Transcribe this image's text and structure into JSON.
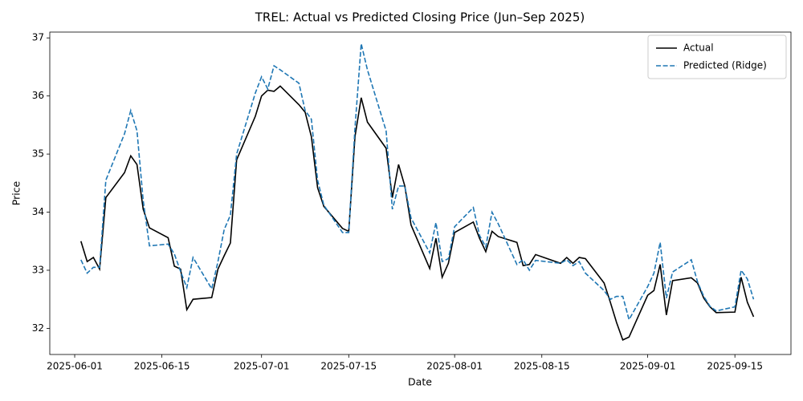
{
  "chart_data": {
    "type": "line",
    "title": "TREL: Actual vs Predicted Closing Price (Jun–Sep 2025)",
    "x_label": "Date",
    "y_label": "Price",
    "x": [
      "2025-06-02",
      "2025-06-03",
      "2025-06-04",
      "2025-06-05",
      "2025-06-06",
      "2025-06-09",
      "2025-06-10",
      "2025-06-11",
      "2025-06-12",
      "2025-06-13",
      "2025-06-16",
      "2025-06-17",
      "2025-06-18",
      "2025-06-19",
      "2025-06-20",
      "2025-06-23",
      "2025-06-24",
      "2025-06-25",
      "2025-06-26",
      "2025-06-27",
      "2025-06-30",
      "2025-07-01",
      "2025-07-02",
      "2025-07-03",
      "2025-07-04",
      "2025-07-07",
      "2025-07-08",
      "2025-07-09",
      "2025-07-10",
      "2025-07-11",
      "2025-07-14",
      "2025-07-15",
      "2025-07-16",
      "2025-07-17",
      "2025-07-18",
      "2025-07-21",
      "2025-07-22",
      "2025-07-23",
      "2025-07-24",
      "2025-07-25",
      "2025-07-28",
      "2025-07-29",
      "2025-07-30",
      "2025-07-31",
      "2025-08-01",
      "2025-08-04",
      "2025-08-05",
      "2025-08-06",
      "2025-08-07",
      "2025-08-08",
      "2025-08-11",
      "2025-08-12",
      "2025-08-13",
      "2025-08-14",
      "2025-08-18",
      "2025-08-19",
      "2025-08-20",
      "2025-08-21",
      "2025-08-22",
      "2025-08-25",
      "2025-08-26",
      "2025-08-27",
      "2025-08-28",
      "2025-08-29",
      "2025-09-01",
      "2025-09-02",
      "2025-09-03",
      "2025-09-04",
      "2025-09-05",
      "2025-09-08",
      "2025-09-09",
      "2025-09-10",
      "2025-09-11",
      "2025-09-12",
      "2025-09-15",
      "2025-09-16",
      "2025-09-17",
      "2025-09-18"
    ],
    "series": [
      {
        "name": "Actual",
        "color": "#000000",
        "dash": false,
        "values": [
          33.5,
          33.15,
          33.22,
          33.02,
          34.25,
          34.68,
          34.97,
          34.82,
          34.05,
          33.73,
          33.56,
          33.07,
          33.02,
          32.32,
          32.5,
          32.53,
          33.02,
          33.25,
          33.47,
          34.9,
          35.65,
          36.0,
          36.1,
          36.08,
          36.17,
          35.85,
          35.72,
          35.3,
          34.42,
          34.1,
          33.72,
          33.67,
          35.3,
          35.97,
          35.55,
          35.1,
          34.25,
          34.82,
          34.45,
          33.78,
          33.03,
          33.55,
          32.88,
          33.12,
          33.65,
          33.83,
          33.55,
          33.32,
          33.67,
          33.58,
          33.48,
          33.08,
          33.1,
          33.27,
          33.12,
          33.22,
          33.12,
          33.22,
          33.2,
          32.78,
          32.45,
          32.1,
          31.8,
          31.85,
          32.57,
          32.65,
          33.1,
          32.23,
          32.82,
          32.87,
          32.78,
          32.52,
          32.37,
          32.27,
          32.28,
          32.88,
          32.45,
          32.2
        ]
      },
      {
        "name": "Predicted (Ridge)",
        "color": "#1f77b4",
        "dash": true,
        "values": [
          33.18,
          32.95,
          33.05,
          33.05,
          34.55,
          35.35,
          35.75,
          35.4,
          34.2,
          33.42,
          33.45,
          33.28,
          32.98,
          32.7,
          33.22,
          32.68,
          33.15,
          33.7,
          33.95,
          35.0,
          36.05,
          36.33,
          36.12,
          36.52,
          36.45,
          36.22,
          35.75,
          35.6,
          34.55,
          34.12,
          33.65,
          33.65,
          35.45,
          36.9,
          36.45,
          35.4,
          34.05,
          34.45,
          34.45,
          33.9,
          33.3,
          33.82,
          33.15,
          33.2,
          33.75,
          34.08,
          33.6,
          33.4,
          34.0,
          33.8,
          33.1,
          33.18,
          33.0,
          33.17,
          33.12,
          33.18,
          33.08,
          33.15,
          32.95,
          32.65,
          32.5,
          32.55,
          32.55,
          32.15,
          32.72,
          32.95,
          33.48,
          32.52,
          32.97,
          33.18,
          32.8,
          32.55,
          32.38,
          32.3,
          32.37,
          33.0,
          32.85,
          32.5
        ]
      }
    ],
    "xlim": [
      "2025-05-28",
      "2025-09-24"
    ],
    "xticks": [
      "2025-06-01",
      "2025-06-15",
      "2025-07-01",
      "2025-07-15",
      "2025-08-01",
      "2025-08-15",
      "2025-09-01",
      "2025-09-15"
    ],
    "ylim": [
      31.55,
      37.1
    ],
    "yticks": [
      32,
      33,
      34,
      35,
      36,
      37
    ],
    "grid": false,
    "legend": "upper right"
  }
}
